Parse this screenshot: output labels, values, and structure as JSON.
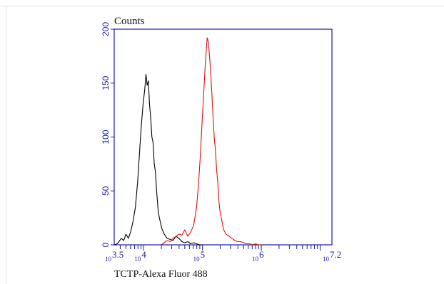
{
  "chart_data": {
    "type": "line",
    "ylabel": "Counts",
    "xlabel": "TCTP-Alexa Fluor 488",
    "x_scale": "log10",
    "xlim": [
      3.5,
      7.2
    ],
    "ylim": [
      0,
      200
    ],
    "y_ticks": [
      {
        "value": 0,
        "label": "0"
      },
      {
        "value": 50,
        "label": "50"
      },
      {
        "value": 100,
        "label": "100"
      },
      {
        "value": 150,
        "label": "150"
      },
      {
        "value": 200,
        "label": "200"
      }
    ],
    "x_ticks": [
      {
        "value": 3.5,
        "base": "10",
        "exp": "3.5"
      },
      {
        "value": 4,
        "base": "10",
        "exp": "4"
      },
      {
        "value": 5,
        "base": "10",
        "exp": "5"
      },
      {
        "value": 6,
        "base": "10",
        "exp": "6"
      },
      {
        "value": 7.2,
        "base": "10",
        "exp": "7.2"
      }
    ],
    "grid": false,
    "series": [
      {
        "color": "#000000",
        "x": [
          3.5,
          3.55,
          3.58,
          3.62,
          3.66,
          3.7,
          3.74,
          3.78,
          3.82,
          3.86,
          3.9,
          3.93,
          3.96,
          3.99,
          4.02,
          4.04,
          4.06,
          4.08,
          4.1,
          4.12,
          4.14,
          4.16,
          4.18,
          4.2,
          4.22,
          4.25,
          4.28,
          4.31,
          4.35,
          4.4,
          4.45,
          4.5,
          4.55,
          4.6,
          4.65,
          4.7,
          4.75,
          4.8,
          4.85,
          4.9,
          4.95,
          5.0
        ],
        "y": [
          0,
          1,
          3,
          6,
          4,
          10,
          6,
          12,
          22,
          35,
          60,
          85,
          110,
          130,
          145,
          158,
          148,
          152,
          130,
          118,
          100,
          95,
          75,
          68,
          50,
          30,
          22,
          15,
          10,
          6,
          5,
          4,
          8,
          6,
          3,
          2,
          3,
          1,
          2,
          1,
          0,
          0
        ]
      },
      {
        "color": "#e01010",
        "x": [
          4.3,
          4.35,
          4.4,
          4.45,
          4.5,
          4.55,
          4.6,
          4.65,
          4.7,
          4.75,
          4.8,
          4.85,
          4.9,
          4.93,
          4.96,
          4.99,
          5.02,
          5.05,
          5.08,
          5.1,
          5.12,
          5.14,
          5.16,
          5.18,
          5.2,
          5.22,
          5.24,
          5.26,
          5.28,
          5.3,
          5.33,
          5.36,
          5.4,
          5.45,
          5.5,
          5.55,
          5.6,
          5.65,
          5.7,
          5.75,
          5.8,
          5.85,
          5.9,
          5.95,
          6.0
        ],
        "y": [
          0,
          2,
          4,
          3,
          6,
          8,
          10,
          9,
          14,
          8,
          12,
          18,
          35,
          55,
          80,
          110,
          140,
          170,
          192,
          188,
          175,
          160,
          140,
          118,
          100,
          88,
          70,
          58,
          40,
          30,
          22,
          14,
          10,
          8,
          6,
          4,
          3,
          3,
          2,
          1,
          1,
          0,
          1,
          0,
          0
        ]
      }
    ]
  }
}
